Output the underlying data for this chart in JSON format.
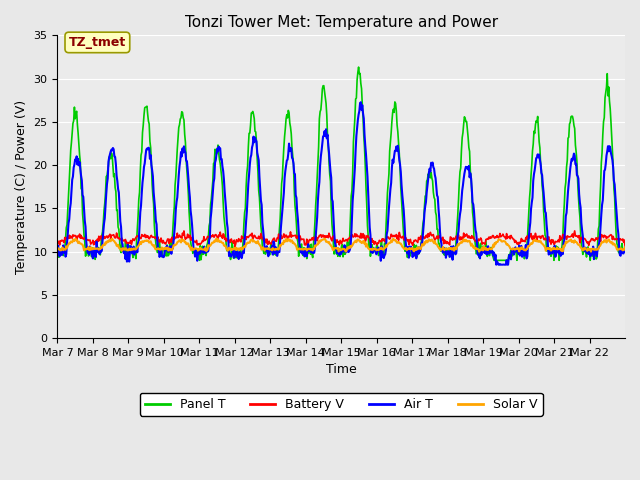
{
  "title": "Tonzi Tower Met: Temperature and Power",
  "xlabel": "Time",
  "ylabel": "Temperature (C) / Power (V)",
  "ylim": [
    0,
    35
  ],
  "yticks": [
    0,
    5,
    10,
    15,
    20,
    25,
    30,
    35
  ],
  "x_labels": [
    "Mar 7",
    "Mar 8",
    "Mar 9",
    "Mar 10",
    "Mar 11",
    "Mar 12",
    "Mar 13",
    "Mar 14",
    "Mar 15",
    "Mar 16",
    "Mar 17",
    "Mar 18",
    "Mar 19",
    "Mar 20",
    "Mar 21",
    "Mar 22"
  ],
  "annotation_text": "TZ_tmet",
  "annotation_color": "#8B0000",
  "annotation_bg": "#FFFFC0",
  "annotation_border": "#999900",
  "colors": {
    "panel_t": "#00CC00",
    "battery_v": "#FF0000",
    "air_t": "#0000FF",
    "solar_v": "#FFA500"
  },
  "legend_labels": [
    "Panel T",
    "Battery V",
    "Air T",
    "Solar V"
  ],
  "background_color": "#E8E8E8",
  "plot_bg": "#EBEBEB",
  "n_days": 16,
  "n_points_per_day": 48,
  "panel_peaks": [
    26,
    21,
    27,
    26,
    22,
    26,
    26,
    29,
    31,
    27,
    19,
    25,
    7,
    25,
    26,
    29
  ],
  "air_peaks": [
    21,
    22,
    22,
    22,
    22,
    23,
    22,
    24,
    27,
    22,
    20,
    20,
    8,
    21,
    21,
    22
  ]
}
